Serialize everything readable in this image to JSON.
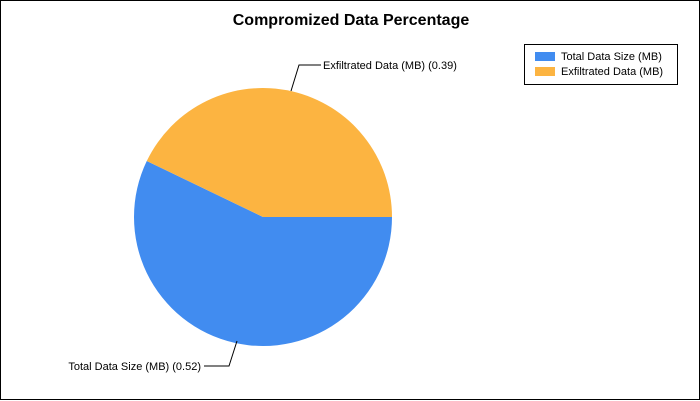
{
  "chart_data": {
    "type": "pie",
    "title": "Compromized Data Percentage",
    "slices": [
      {
        "name": "Total Data Size (MB)",
        "value": 0.52,
        "color": "#418CF0",
        "label": "Total Data Size (MB) (0.52)"
      },
      {
        "name": "Exfiltrated Data (MB)",
        "value": 0.39,
        "color": "#FCB441",
        "label": "Exfiltrated Data (MB) (0.39)"
      }
    ],
    "legend": {
      "placement": "top-right",
      "entries": [
        "Total Data Size (MB)",
        "Exfiltrated Data (MB)"
      ]
    }
  }
}
